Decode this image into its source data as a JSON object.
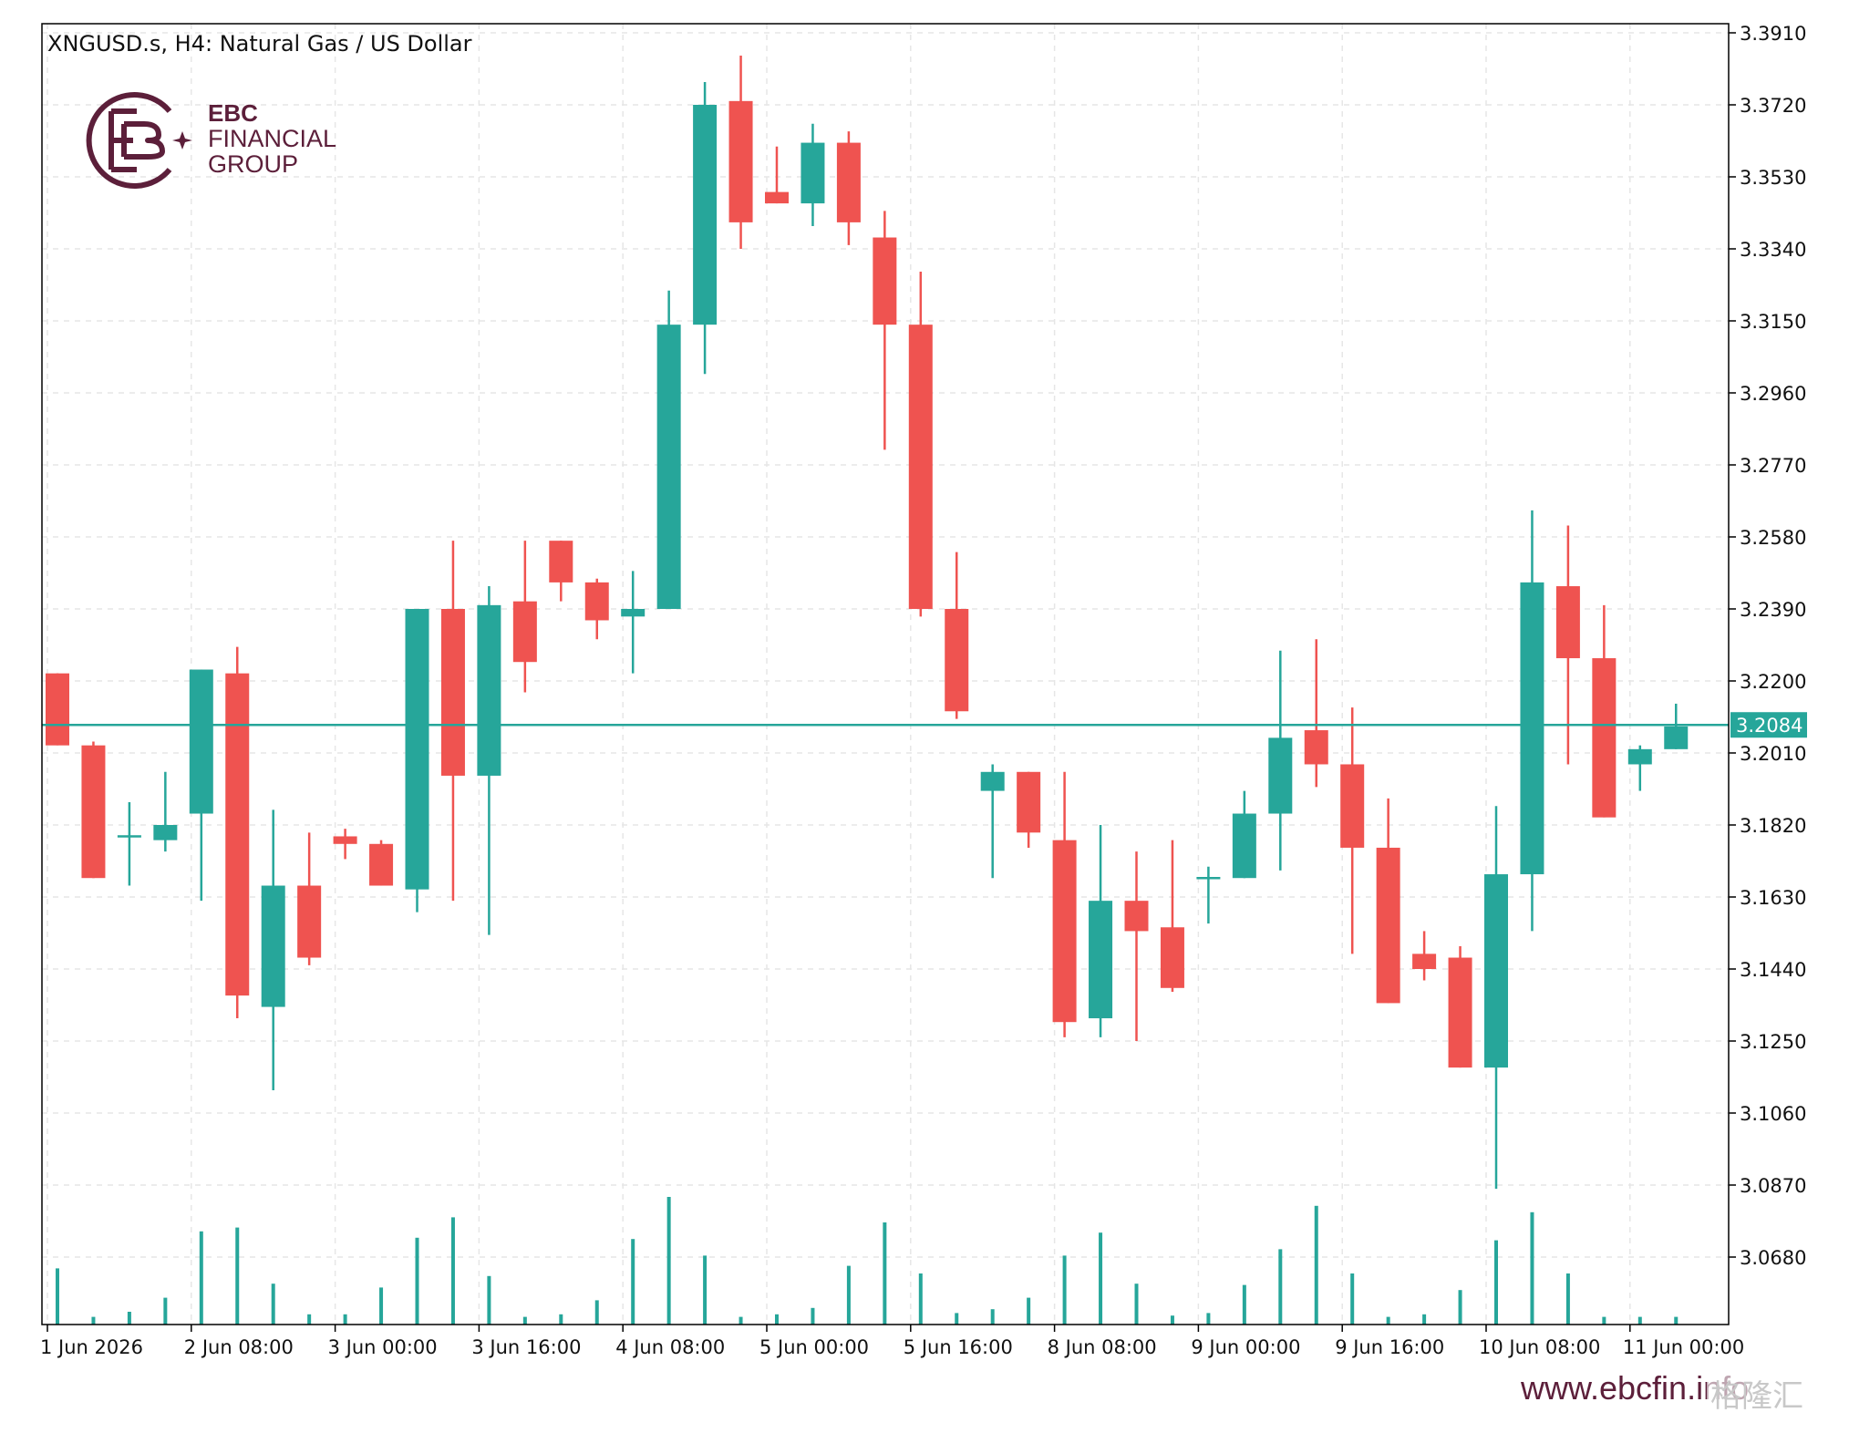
{
  "header": {
    "symbol_title": "XNGUSD.s, H4:  Natural Gas / US Dollar"
  },
  "brand": {
    "line1": "EBC",
    "line2": "FINANCIAL",
    "line3": "GROUP",
    "color": "#5c1f3a",
    "icon": "ebc-logo-icon"
  },
  "footer": {
    "website": "www.ebcfin.info",
    "watermark": "格隆汇"
  },
  "colors": {
    "bull": "#26a69a",
    "bear": "#ef5350",
    "grid": "#e6e6e6",
    "axis": "#000000",
    "price_line": "#26a69a"
  },
  "chart_data": {
    "type": "candlestick",
    "title": "XNGUSD.s, H4:  Natural Gas / US Dollar",
    "timeframe": "H4",
    "grid": true,
    "y_axis": {
      "position": "right",
      "ylim": [
        3.06,
        3.391
      ],
      "ticks": [
        3.391,
        3.372,
        3.353,
        3.334,
        3.315,
        3.296,
        3.277,
        3.258,
        3.239,
        3.22,
        3.201,
        3.182,
        3.163,
        3.144,
        3.125,
        3.106,
        3.087,
        3.068
      ],
      "tick_labels": [
        "3.3910",
        "3.3720",
        "3.3530",
        "3.3340",
        "3.3150",
        "3.2960",
        "3.2770",
        "3.2580",
        "3.2390",
        "3.2200",
        "3.2010",
        "3.1820",
        "3.1630",
        "3.1440",
        "3.1250",
        "3.1060",
        "3.0870",
        "3.0680"
      ]
    },
    "x_axis": {
      "tick_labels": [
        "1 Jun 2026",
        "2 Jun 08:00",
        "3 Jun 00:00",
        "3 Jun 16:00",
        "4 Jun 08:00",
        "5 Jun 00:00",
        "5 Jun 16:00",
        "8 Jun 08:00",
        "9 Jun 00:00",
        "9 Jun 16:00",
        "10 Jun 08:00",
        "11 Jun 00:00"
      ],
      "tick_bar_index": [
        0,
        4,
        8,
        12,
        16,
        20,
        24,
        28,
        32,
        36,
        40,
        44
      ]
    },
    "current_price": 3.2084,
    "current_price_label": "3.2084",
    "candles": [
      {
        "o": 3.222,
        "h": 3.222,
        "l": 3.203,
        "c": 3.203
      },
      {
        "o": 3.203,
        "h": 3.204,
        "l": 3.168,
        "c": 3.168
      },
      {
        "o": 3.179,
        "h": 3.188,
        "l": 3.166,
        "c": 3.179
      },
      {
        "o": 3.178,
        "h": 3.196,
        "l": 3.175,
        "c": 3.182
      },
      {
        "o": 3.185,
        "h": 3.223,
        "l": 3.162,
        "c": 3.223
      },
      {
        "o": 3.222,
        "h": 3.229,
        "l": 3.131,
        "c": 3.137
      },
      {
        "o": 3.134,
        "h": 3.186,
        "l": 3.112,
        "c": 3.166
      },
      {
        "o": 3.166,
        "h": 3.18,
        "l": 3.145,
        "c": 3.147
      },
      {
        "o": 3.179,
        "h": 3.181,
        "l": 3.173,
        "c": 3.177
      },
      {
        "o": 3.177,
        "h": 3.178,
        "l": 3.166,
        "c": 3.166
      },
      {
        "o": 3.165,
        "h": 3.239,
        "l": 3.159,
        "c": 3.239
      },
      {
        "o": 3.239,
        "h": 3.257,
        "l": 3.162,
        "c": 3.195
      },
      {
        "o": 3.195,
        "h": 3.245,
        "l": 3.153,
        "c": 3.24
      },
      {
        "o": 3.241,
        "h": 3.257,
        "l": 3.217,
        "c": 3.225
      },
      {
        "o": 3.257,
        "h": 3.257,
        "l": 3.241,
        "c": 3.246
      },
      {
        "o": 3.246,
        "h": 3.247,
        "l": 3.231,
        "c": 3.236
      },
      {
        "o": 3.237,
        "h": 3.249,
        "l": 3.222,
        "c": 3.239
      },
      {
        "o": 3.239,
        "h": 3.323,
        "l": 3.239,
        "c": 3.314
      },
      {
        "o": 3.314,
        "h": 3.378,
        "l": 3.301,
        "c": 3.372
      },
      {
        "o": 3.373,
        "h": 3.385,
        "l": 3.334,
        "c": 3.341
      },
      {
        "o": 3.349,
        "h": 3.361,
        "l": 3.346,
        "c": 3.346
      },
      {
        "o": 3.346,
        "h": 3.367,
        "l": 3.34,
        "c": 3.362
      },
      {
        "o": 3.362,
        "h": 3.365,
        "l": 3.335,
        "c": 3.341
      },
      {
        "o": 3.337,
        "h": 3.344,
        "l": 3.281,
        "c": 3.314
      },
      {
        "o": 3.314,
        "h": 3.328,
        "l": 3.237,
        "c": 3.239
      },
      {
        "o": 3.239,
        "h": 3.254,
        "l": 3.21,
        "c": 3.212
      },
      {
        "o": 3.191,
        "h": 3.198,
        "l": 3.168,
        "c": 3.196
      },
      {
        "o": 3.196,
        "h": 3.196,
        "l": 3.176,
        "c": 3.18
      },
      {
        "o": 3.178,
        "h": 3.196,
        "l": 3.126,
        "c": 3.13
      },
      {
        "o": 3.131,
        "h": 3.182,
        "l": 3.126,
        "c": 3.162
      },
      {
        "o": 3.162,
        "h": 3.175,
        "l": 3.125,
        "c": 3.154
      },
      {
        "o": 3.155,
        "h": 3.178,
        "l": 3.138,
        "c": 3.139
      },
      {
        "o": 3.168,
        "h": 3.171,
        "l": 3.156,
        "c": 3.168
      },
      {
        "o": 3.168,
        "h": 3.191,
        "l": 3.168,
        "c": 3.185
      },
      {
        "o": 3.185,
        "h": 3.228,
        "l": 3.17,
        "c": 3.205
      },
      {
        "o": 3.207,
        "h": 3.231,
        "l": 3.192,
        "c": 3.198
      },
      {
        "o": 3.198,
        "h": 3.213,
        "l": 3.148,
        "c": 3.176
      },
      {
        "o": 3.176,
        "h": 3.189,
        "l": 3.135,
        "c": 3.135
      },
      {
        "o": 3.148,
        "h": 3.154,
        "l": 3.141,
        "c": 3.144
      },
      {
        "o": 3.147,
        "h": 3.15,
        "l": 3.118,
        "c": 3.118
      },
      {
        "o": 3.118,
        "h": 3.187,
        "l": 3.086,
        "c": 3.169
      },
      {
        "o": 3.169,
        "h": 3.265,
        "l": 3.154,
        "c": 3.246
      },
      {
        "o": 3.245,
        "h": 3.261,
        "l": 3.198,
        "c": 3.226
      },
      {
        "o": 3.226,
        "h": 3.24,
        "l": 3.184,
        "c": 3.184
      },
      {
        "o": 3.198,
        "h": 3.203,
        "l": 3.191,
        "c": 3.202
      },
      {
        "o": 3.202,
        "h": 3.214,
        "l": 3.202,
        "c": 3.208
      }
    ],
    "volume": [
      0.44,
      0.06,
      0.1,
      0.21,
      0.73,
      0.76,
      0.32,
      0.08,
      0.08,
      0.29,
      0.68,
      0.84,
      0.38,
      0.06,
      0.08,
      0.19,
      0.67,
      1.0,
      0.54,
      0.06,
      0.08,
      0.13,
      0.46,
      0.8,
      0.4,
      0.09,
      0.12,
      0.21,
      0.54,
      0.72,
      0.32,
      0.07,
      0.09,
      0.31,
      0.59,
      0.93,
      0.4,
      0.06,
      0.08,
      0.27,
      0.66,
      0.88,
      0.4,
      0.06,
      0.06,
      0.06
    ]
  }
}
